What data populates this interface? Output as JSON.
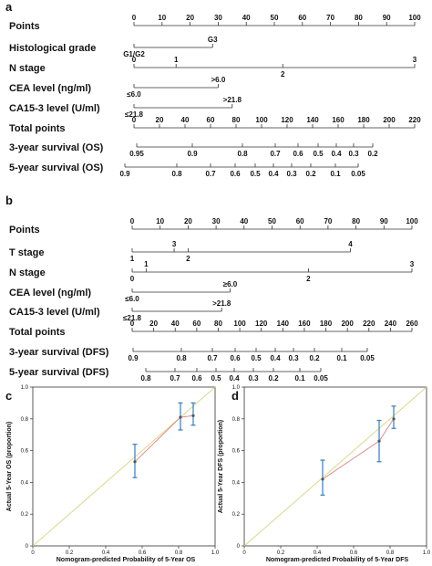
{
  "nomograms": [
    {
      "panel": "a",
      "rows": [
        {
          "label": "Points",
          "ticks": [
            {
              "v": 0,
              "t": "0"
            },
            {
              "v": 10,
              "t": "10"
            },
            {
              "v": 20,
              "t": "20"
            },
            {
              "v": 30,
              "t": "30"
            },
            {
              "v": 40,
              "t": "40"
            },
            {
              "v": 50,
              "t": "50"
            },
            {
              "v": 60,
              "t": "60"
            },
            {
              "v": 70,
              "t": "70"
            },
            {
              "v": 80,
              "t": "80"
            },
            {
              "v": 90,
              "t": "90"
            },
            {
              "v": 100,
              "t": "100"
            }
          ]
        },
        {
          "label": "Histological grade",
          "ticks": [
            {
              "v": 0,
              "t": "G1/G2",
              "below": true
            },
            {
              "v": 28,
              "t": "G3"
            }
          ]
        },
        {
          "label": "N stage",
          "ticks": [
            {
              "v": 0,
              "t": "0"
            },
            {
              "v": 15,
              "t": "1"
            },
            {
              "v": 53,
              "t": "2",
              "below": true
            },
            {
              "v": 100,
              "t": "3"
            }
          ]
        },
        {
          "label": "CEA level (ng/ml)",
          "ticks": [
            {
              "v": 0,
              "t": "≤6.0",
              "below": true
            },
            {
              "v": 30,
              "t": ">6.0"
            }
          ]
        },
        {
          "label": "CA15-3 level (U/ml)",
          "ticks": [
            {
              "v": 0,
              "t": "≤21.8",
              "below": true
            },
            {
              "v": 35,
              "t": ">21.8"
            }
          ]
        },
        {
          "label": "Total points",
          "ticks": [
            {
              "v": 0,
              "t": "0"
            },
            {
              "v": 20,
              "t": "20"
            },
            {
              "v": 40,
              "t": "40"
            },
            {
              "v": 60,
              "t": "60"
            },
            {
              "v": 80,
              "t": "80"
            },
            {
              "v": 100,
              "t": "100"
            },
            {
              "v": 120,
              "t": "120"
            },
            {
              "v": 140,
              "t": "140"
            },
            {
              "v": 160,
              "t": "160"
            },
            {
              "v": 180,
              "t": "180"
            },
            {
              "v": 200,
              "t": "200"
            },
            {
              "v": 220,
              "t": "220"
            }
          ]
        },
        {
          "label": "3-year survival (OS)",
          "ticks": [
            {
              "v": 0.95,
              "t": "0.95",
              "below": true
            },
            {
              "v": 0.9,
              "t": "0.9",
              "below": true
            },
            {
              "v": 0.8,
              "t": "0.8",
              "below": true
            },
            {
              "v": 0.7,
              "t": "0.7",
              "below": true
            },
            {
              "v": 0.6,
              "t": "0.6",
              "below": true
            },
            {
              "v": 0.5,
              "t": "0.5",
              "below": true
            },
            {
              "v": 0.4,
              "t": "0.4",
              "below": true
            },
            {
              "v": 0.3,
              "t": "0.3",
              "below": true
            },
            {
              "v": 0.2,
              "t": "0.2",
              "below": true
            }
          ]
        },
        {
          "label": "5-year survival (OS)",
          "ticks": [
            {
              "v": 0.9,
              "t": "0.9",
              "below": true
            },
            {
              "v": 0.8,
              "t": "0.8",
              "below": true
            },
            {
              "v": 0.7,
              "t": "0.7",
              "below": true
            },
            {
              "v": 0.6,
              "t": "0.6",
              "below": true
            },
            {
              "v": 0.5,
              "t": "0.5",
              "below": true
            },
            {
              "v": 0.4,
              "t": "0.4",
              "below": true
            },
            {
              "v": 0.3,
              "t": "0.3",
              "below": true
            },
            {
              "v": 0.2,
              "t": "0.2",
              "below": true
            },
            {
              "v": 0.1,
              "t": "0.1",
              "below": true
            },
            {
              "v": 0.05,
              "t": "0.05",
              "below": true
            }
          ]
        }
      ]
    },
    {
      "panel": "b",
      "rows": [
        {
          "label": "Points",
          "ticks": [
            {
              "v": 0,
              "t": "0"
            },
            {
              "v": 10,
              "t": "10"
            },
            {
              "v": 20,
              "t": "20"
            },
            {
              "v": 30,
              "t": "30"
            },
            {
              "v": 40,
              "t": "40"
            },
            {
              "v": 50,
              "t": "50"
            },
            {
              "v": 60,
              "t": "60"
            },
            {
              "v": 70,
              "t": "70"
            },
            {
              "v": 80,
              "t": "80"
            },
            {
              "v": 90,
              "t": "90"
            },
            {
              "v": 100,
              "t": "100"
            }
          ]
        },
        {
          "label": "T stage",
          "ticks": [
            {
              "v": 0,
              "t": "1",
              "below": true
            },
            {
              "v": 15,
              "t": "3"
            },
            {
              "v": 20,
              "t": "2",
              "below": true
            },
            {
              "v": 78,
              "t": "4"
            }
          ]
        },
        {
          "label": "N stage",
          "ticks": [
            {
              "v": 0,
              "t": "0",
              "below": true
            },
            {
              "v": 5,
              "t": "1"
            },
            {
              "v": 63,
              "t": "2",
              "below": true
            },
            {
              "v": 100,
              "t": "3"
            }
          ]
        },
        {
          "label": "CEA level (ng/ml)",
          "ticks": [
            {
              "v": 0,
              "t": "≤6.0",
              "below": true
            },
            {
              "v": 35,
              "t": "≥6.0"
            }
          ]
        },
        {
          "label": "CA15-3 level (U/ml)",
          "ticks": [
            {
              "v": 0,
              "t": "≤21.8",
              "below": true
            },
            {
              "v": 32,
              "t": ">21.8"
            }
          ]
        },
        {
          "label": "Total points",
          "ticks": [
            {
              "v": 0,
              "t": "0"
            },
            {
              "v": 20,
              "t": "20"
            },
            {
              "v": 40,
              "t": "40"
            },
            {
              "v": 60,
              "t": "60"
            },
            {
              "v": 80,
              "t": "80"
            },
            {
              "v": 100,
              "t": "100"
            },
            {
              "v": 120,
              "t": "120"
            },
            {
              "v": 140,
              "t": "140"
            },
            {
              "v": 160,
              "t": "160"
            },
            {
              "v": 180,
              "t": "180"
            },
            {
              "v": 200,
              "t": "200"
            },
            {
              "v": 220,
              "t": "220"
            },
            {
              "v": 240,
              "t": "240"
            },
            {
              "v": 260,
              "t": "260"
            }
          ]
        },
        {
          "label": "3-year survival (DFS)",
          "ticks": [
            {
              "v": 0.9,
              "t": "0.9",
              "below": true
            },
            {
              "v": 0.8,
              "t": "0.8",
              "below": true
            },
            {
              "v": 0.7,
              "t": "0.7",
              "below": true
            },
            {
              "v": 0.6,
              "t": "0.6",
              "below": true
            },
            {
              "v": 0.5,
              "t": "0.5",
              "below": true
            },
            {
              "v": 0.4,
              "t": "0.4",
              "below": true
            },
            {
              "v": 0.3,
              "t": "0.3",
              "below": true
            },
            {
              "v": 0.2,
              "t": "0.2",
              "below": true
            },
            {
              "v": 0.1,
              "t": "0.1",
              "below": true
            },
            {
              "v": 0.05,
              "t": "0.05",
              "below": true
            }
          ]
        },
        {
          "label": "5-year survival (DFS)",
          "ticks": [
            {
              "v": 0.8,
              "t": "0.8",
              "below": true
            },
            {
              "v": 0.7,
              "t": "0.7",
              "below": true
            },
            {
              "v": 0.6,
              "t": "0.6",
              "below": true
            },
            {
              "v": 0.5,
              "t": "0.5",
              "below": true
            },
            {
              "v": 0.4,
              "t": "0.4",
              "below": true
            },
            {
              "v": 0.3,
              "t": "0.3",
              "below": true
            },
            {
              "v": 0.2,
              "t": "0.2",
              "below": true
            },
            {
              "v": 0.1,
              "t": "0.1",
              "below": true
            },
            {
              "v": 0.05,
              "t": "0.05",
              "below": true
            }
          ]
        }
      ]
    }
  ],
  "chart_data": [
    {
      "panel": "c",
      "type": "scatter",
      "xlabel": "Nomogram-predicted Probability of 5-Year OS",
      "ylabel": "Actual 5-Year OS (proportion)",
      "xlim": [
        0,
        1.0
      ],
      "ylim": [
        0,
        1.0
      ],
      "xticks": [
        "0",
        "0.2",
        "0.4",
        "0.6",
        "0.8",
        "1.0"
      ],
      "yticks": [
        "0",
        "0.2",
        "0.4",
        "0.6",
        "0.8",
        "1.0"
      ],
      "points": [
        {
          "x": 0.56,
          "y": 0.53,
          "lo": 0.43,
          "hi": 0.64
        },
        {
          "x": 0.81,
          "y": 0.81,
          "lo": 0.73,
          "hi": 0.9
        },
        {
          "x": 0.88,
          "y": 0.82,
          "lo": 0.76,
          "hi": 0.9
        }
      ],
      "colors": {
        "reference": "#d9d98a",
        "curve": "#e08080",
        "errorbar": "#2f7fc6",
        "point": "#555555"
      }
    },
    {
      "panel": "d",
      "type": "scatter",
      "xlabel": "Nomogram-predicted Probability of 5-Year DFS",
      "ylabel": "Actual 5-Year DFS (proportion)",
      "xlim": [
        0,
        1.0
      ],
      "ylim": [
        0,
        1.0
      ],
      "xticks": [
        "0",
        "0.2",
        "0.4",
        "0.6",
        "0.8",
        "1.0"
      ],
      "yticks": [
        "0",
        "0.2",
        "0.4",
        "0.6",
        "0.8",
        "1.0"
      ],
      "points": [
        {
          "x": 0.43,
          "y": 0.42,
          "lo": 0.32,
          "hi": 0.54
        },
        {
          "x": 0.74,
          "y": 0.66,
          "lo": 0.53,
          "hi": 0.79
        },
        {
          "x": 0.82,
          "y": 0.8,
          "lo": 0.74,
          "hi": 0.88
        }
      ],
      "colors": {
        "reference": "#d9d98a",
        "curve": "#e08080",
        "errorbar": "#2f7fc6",
        "point": "#555555"
      }
    }
  ]
}
